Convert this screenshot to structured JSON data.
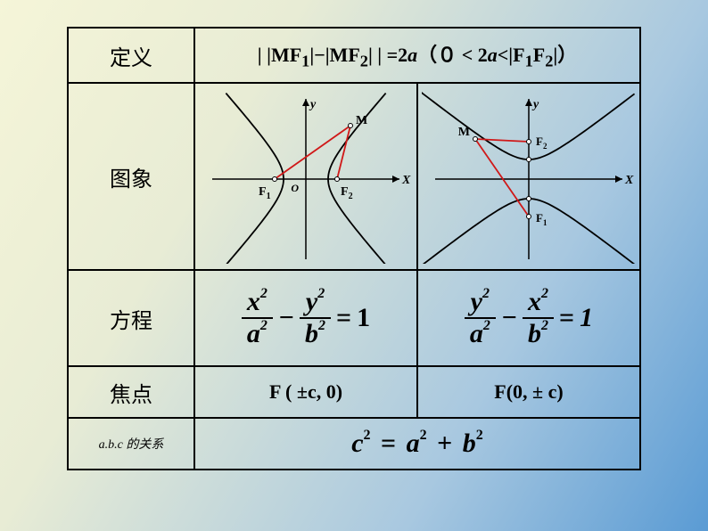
{
  "labels": {
    "definition": "定义",
    "image": "图象",
    "equation": "方程",
    "foci": "焦点",
    "abc": "a.b.c 的关系"
  },
  "definition_text": {
    "prefix": "| |MF",
    "sub1": "1",
    "mid1": "|−|MF",
    "sub2": "2",
    "mid2": "| | =2",
    "a_var": "a",
    "paren_open": "（",
    "zero": "０",
    "lt1": " < 2",
    "a_var2": "a",
    "lt2": "<|F",
    "sub3": "1",
    "f2": "F",
    "sub4": "2",
    "end": "|）"
  },
  "foci_h": "F ( ±c, 0)",
  "foci_v": "F(0, ± c)",
  "eq_h": {
    "n1": "x",
    "d1": "a",
    "n2": "y",
    "d2": "b",
    "rhs": "1"
  },
  "eq_v": {
    "n1": "y",
    "d1": "a",
    "n2": "x",
    "d2": "b",
    "rhs": "1"
  },
  "abc_eq": {
    "c": "c",
    "a": "a",
    "b": "b",
    "eq": "=",
    "plus": "+"
  },
  "chart_h": {
    "type": "hyperbola-horizontal",
    "axis_color": "#000000",
    "curve_color": "#000000",
    "line_color": "#d01818",
    "y_label": "y",
    "x_label": "X",
    "origin_label": "O",
    "f1_label": "F",
    "f1_sub": "1",
    "f2_label": "F",
    "f2_sub": "2",
    "m_label": "M",
    "foci": [
      [
        -35,
        0
      ],
      [
        35,
        0
      ]
    ],
    "m_point": [
      50,
      -60
    ],
    "curve_a": 25,
    "curve_b": 28
  },
  "chart_v": {
    "type": "hyperbola-vertical",
    "axis_color": "#000000",
    "curve_color": "#000000",
    "line_color": "#d01818",
    "y_label": "y",
    "x_label": "X",
    "f1_label": "F",
    "f1_sub": "1",
    "f2_label": "F",
    "f2_sub": "2",
    "m_label": "M",
    "foci": [
      [
        0,
        42
      ],
      [
        0,
        -42
      ]
    ],
    "m_point": [
      -60,
      -45
    ],
    "curve_a": 22,
    "curve_b": 28
  }
}
